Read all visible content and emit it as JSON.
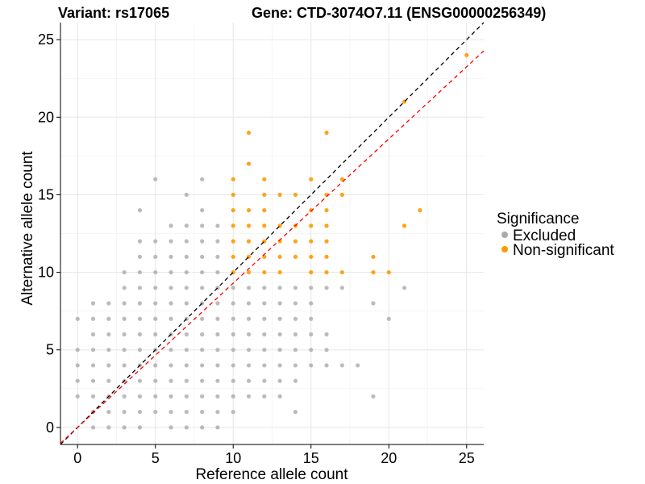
{
  "chart_data": {
    "type": "scatter",
    "title_left": "Variant: rs17065",
    "title_right": "Gene: CTD-3074O7.11 (ENSG00000256349)",
    "xlabel": "Reference allele count",
    "ylabel": "Alternative allele count",
    "xlim": [
      -1.1,
      26.1
    ],
    "ylim": [
      -1.1,
      26.1
    ],
    "xticks": [
      0,
      5,
      10,
      15,
      20,
      25
    ],
    "yticks": [
      0,
      5,
      10,
      15,
      20,
      25
    ],
    "grid": true,
    "legend": {
      "title": "Significance",
      "position": "right",
      "entries": [
        {
          "label": "Excluded",
          "color": "#aaaaaa"
        },
        {
          "label": "Non-significant",
          "color": "#ff9900"
        }
      ]
    },
    "reference_lines": [
      {
        "name": "identity",
        "slope": 1,
        "intercept": 0,
        "color": "#000000",
        "style": "dashed"
      },
      {
        "name": "fit",
        "slope": 0.93,
        "intercept": 0,
        "color": "#ff0000",
        "style": "dashed"
      }
    ],
    "series": [
      {
        "name": "Excluded",
        "color": "#aaaaaa",
        "points": [
          [
            0,
            2
          ],
          [
            0,
            3
          ],
          [
            0,
            4
          ],
          [
            0,
            5
          ],
          [
            0,
            7
          ],
          [
            1,
            0
          ],
          [
            1,
            1
          ],
          [
            1,
            2
          ],
          [
            1,
            3
          ],
          [
            1,
            4
          ],
          [
            1,
            5
          ],
          [
            1,
            6
          ],
          [
            1,
            7
          ],
          [
            1,
            8
          ],
          [
            2,
            0
          ],
          [
            2,
            1
          ],
          [
            2,
            2
          ],
          [
            2,
            3
          ],
          [
            2,
            4
          ],
          [
            2,
            5
          ],
          [
            2,
            6
          ],
          [
            2,
            7
          ],
          [
            2,
            8
          ],
          [
            3,
            0
          ],
          [
            3,
            1
          ],
          [
            3,
            2
          ],
          [
            3,
            3
          ],
          [
            3,
            4
          ],
          [
            3,
            5
          ],
          [
            3,
            6
          ],
          [
            3,
            7
          ],
          [
            3,
            8
          ],
          [
            3,
            9
          ],
          [
            3,
            10
          ],
          [
            4,
            0
          ],
          [
            4,
            1
          ],
          [
            4,
            2
          ],
          [
            4,
            3
          ],
          [
            4,
            4
          ],
          [
            4,
            5
          ],
          [
            4,
            6
          ],
          [
            4,
            7
          ],
          [
            4,
            8
          ],
          [
            4,
            9
          ],
          [
            4,
            10
          ],
          [
            4,
            11
          ],
          [
            4,
            12
          ],
          [
            4,
            14
          ],
          [
            5,
            1
          ],
          [
            5,
            2
          ],
          [
            5,
            3
          ],
          [
            5,
            4
          ],
          [
            5,
            5
          ],
          [
            5,
            6
          ],
          [
            5,
            7
          ],
          [
            5,
            8
          ],
          [
            5,
            9
          ],
          [
            5,
            10
          ],
          [
            5,
            11
          ],
          [
            5,
            12
          ],
          [
            5,
            16
          ],
          [
            6,
            0
          ],
          [
            6,
            1
          ],
          [
            6,
            2
          ],
          [
            6,
            3
          ],
          [
            6,
            4
          ],
          [
            6,
            5
          ],
          [
            6,
            6
          ],
          [
            6,
            7
          ],
          [
            6,
            8
          ],
          [
            6,
            9
          ],
          [
            6,
            10
          ],
          [
            6,
            11
          ],
          [
            6,
            12
          ],
          [
            6,
            13
          ],
          [
            7,
            0
          ],
          [
            7,
            1
          ],
          [
            7,
            2
          ],
          [
            7,
            3
          ],
          [
            7,
            4
          ],
          [
            7,
            5
          ],
          [
            7,
            6
          ],
          [
            7,
            7
          ],
          [
            7,
            8
          ],
          [
            7,
            9
          ],
          [
            7,
            10
          ],
          [
            7,
            11
          ],
          [
            7,
            12
          ],
          [
            7,
            13
          ],
          [
            7,
            15
          ],
          [
            8,
            0
          ],
          [
            8,
            1
          ],
          [
            8,
            2
          ],
          [
            8,
            3
          ],
          [
            8,
            4
          ],
          [
            8,
            5
          ],
          [
            8,
            6
          ],
          [
            8,
            7
          ],
          [
            8,
            8
          ],
          [
            8,
            9
          ],
          [
            8,
            10
          ],
          [
            8,
            11
          ],
          [
            8,
            12
          ],
          [
            8,
            13
          ],
          [
            8,
            14
          ],
          [
            8,
            16
          ],
          [
            9,
            0
          ],
          [
            9,
            1
          ],
          [
            9,
            2
          ],
          [
            9,
            3
          ],
          [
            9,
            4
          ],
          [
            9,
            5
          ],
          [
            9,
            6
          ],
          [
            9,
            7
          ],
          [
            9,
            8
          ],
          [
            9,
            9
          ],
          [
            9,
            10
          ],
          [
            9,
            11
          ],
          [
            9,
            12
          ],
          [
            9,
            13
          ],
          [
            10,
            1
          ],
          [
            10,
            2
          ],
          [
            10,
            3
          ],
          [
            10,
            4
          ],
          [
            10,
            5
          ],
          [
            10,
            6
          ],
          [
            10,
            7
          ],
          [
            10,
            8
          ],
          [
            10,
            9
          ],
          [
            11,
            2
          ],
          [
            11,
            3
          ],
          [
            11,
            4
          ],
          [
            11,
            5
          ],
          [
            11,
            6
          ],
          [
            11,
            7
          ],
          [
            11,
            8
          ],
          [
            11,
            9
          ],
          [
            12,
            2
          ],
          [
            12,
            3
          ],
          [
            12,
            4
          ],
          [
            12,
            5
          ],
          [
            12,
            6
          ],
          [
            12,
            7
          ],
          [
            12,
            8
          ],
          [
            12,
            9
          ],
          [
            13,
            2
          ],
          [
            13,
            3
          ],
          [
            13,
            4
          ],
          [
            13,
            5
          ],
          [
            13,
            6
          ],
          [
            13,
            7
          ],
          [
            13,
            8
          ],
          [
            13,
            9
          ],
          [
            14,
            1
          ],
          [
            14,
            3
          ],
          [
            14,
            4
          ],
          [
            14,
            5
          ],
          [
            14,
            6
          ],
          [
            14,
            7
          ],
          [
            14,
            8
          ],
          [
            14,
            9
          ],
          [
            15,
            4
          ],
          [
            15,
            5
          ],
          [
            15,
            6
          ],
          [
            15,
            7
          ],
          [
            15,
            8
          ],
          [
            15,
            9
          ],
          [
            16,
            4
          ],
          [
            16,
            5
          ],
          [
            16,
            6
          ],
          [
            16,
            9
          ],
          [
            17,
            4
          ],
          [
            17,
            9
          ],
          [
            18,
            4
          ],
          [
            19,
            2
          ],
          [
            19,
            8
          ],
          [
            20,
            7
          ],
          [
            21,
            9
          ]
        ]
      },
      {
        "name": "Non-significant",
        "color": "#ff9900",
        "points": [
          [
            10,
            10
          ],
          [
            10,
            11
          ],
          [
            10,
            12
          ],
          [
            10,
            13
          ],
          [
            10,
            14
          ],
          [
            10,
            15
          ],
          [
            10,
            16
          ],
          [
            11,
            10
          ],
          [
            11,
            11
          ],
          [
            11,
            12
          ],
          [
            11,
            13
          ],
          [
            11,
            14
          ],
          [
            11,
            17
          ],
          [
            11,
            19
          ],
          [
            12,
            10
          ],
          [
            12,
            11
          ],
          [
            12,
            12
          ],
          [
            12,
            13
          ],
          [
            12,
            14
          ],
          [
            12,
            15
          ],
          [
            12,
            16
          ],
          [
            13,
            10
          ],
          [
            13,
            11
          ],
          [
            13,
            12
          ],
          [
            13,
            13
          ],
          [
            13,
            15
          ],
          [
            14,
            11
          ],
          [
            14,
            12
          ],
          [
            14,
            13
          ],
          [
            14,
            15
          ],
          [
            15,
            10
          ],
          [
            15,
            11
          ],
          [
            15,
            12
          ],
          [
            15,
            13
          ],
          [
            15,
            14
          ],
          [
            15,
            16
          ],
          [
            16,
            10
          ],
          [
            16,
            11
          ],
          [
            16,
            12
          ],
          [
            16,
            13
          ],
          [
            16,
            14
          ],
          [
            16,
            15
          ],
          [
            16,
            19
          ],
          [
            17,
            10
          ],
          [
            17,
            15
          ],
          [
            17,
            16
          ],
          [
            19,
            10
          ],
          [
            19,
            11
          ],
          [
            20,
            10
          ],
          [
            21,
            13
          ],
          [
            21,
            21
          ],
          [
            22,
            14
          ],
          [
            25,
            24
          ]
        ]
      }
    ]
  }
}
